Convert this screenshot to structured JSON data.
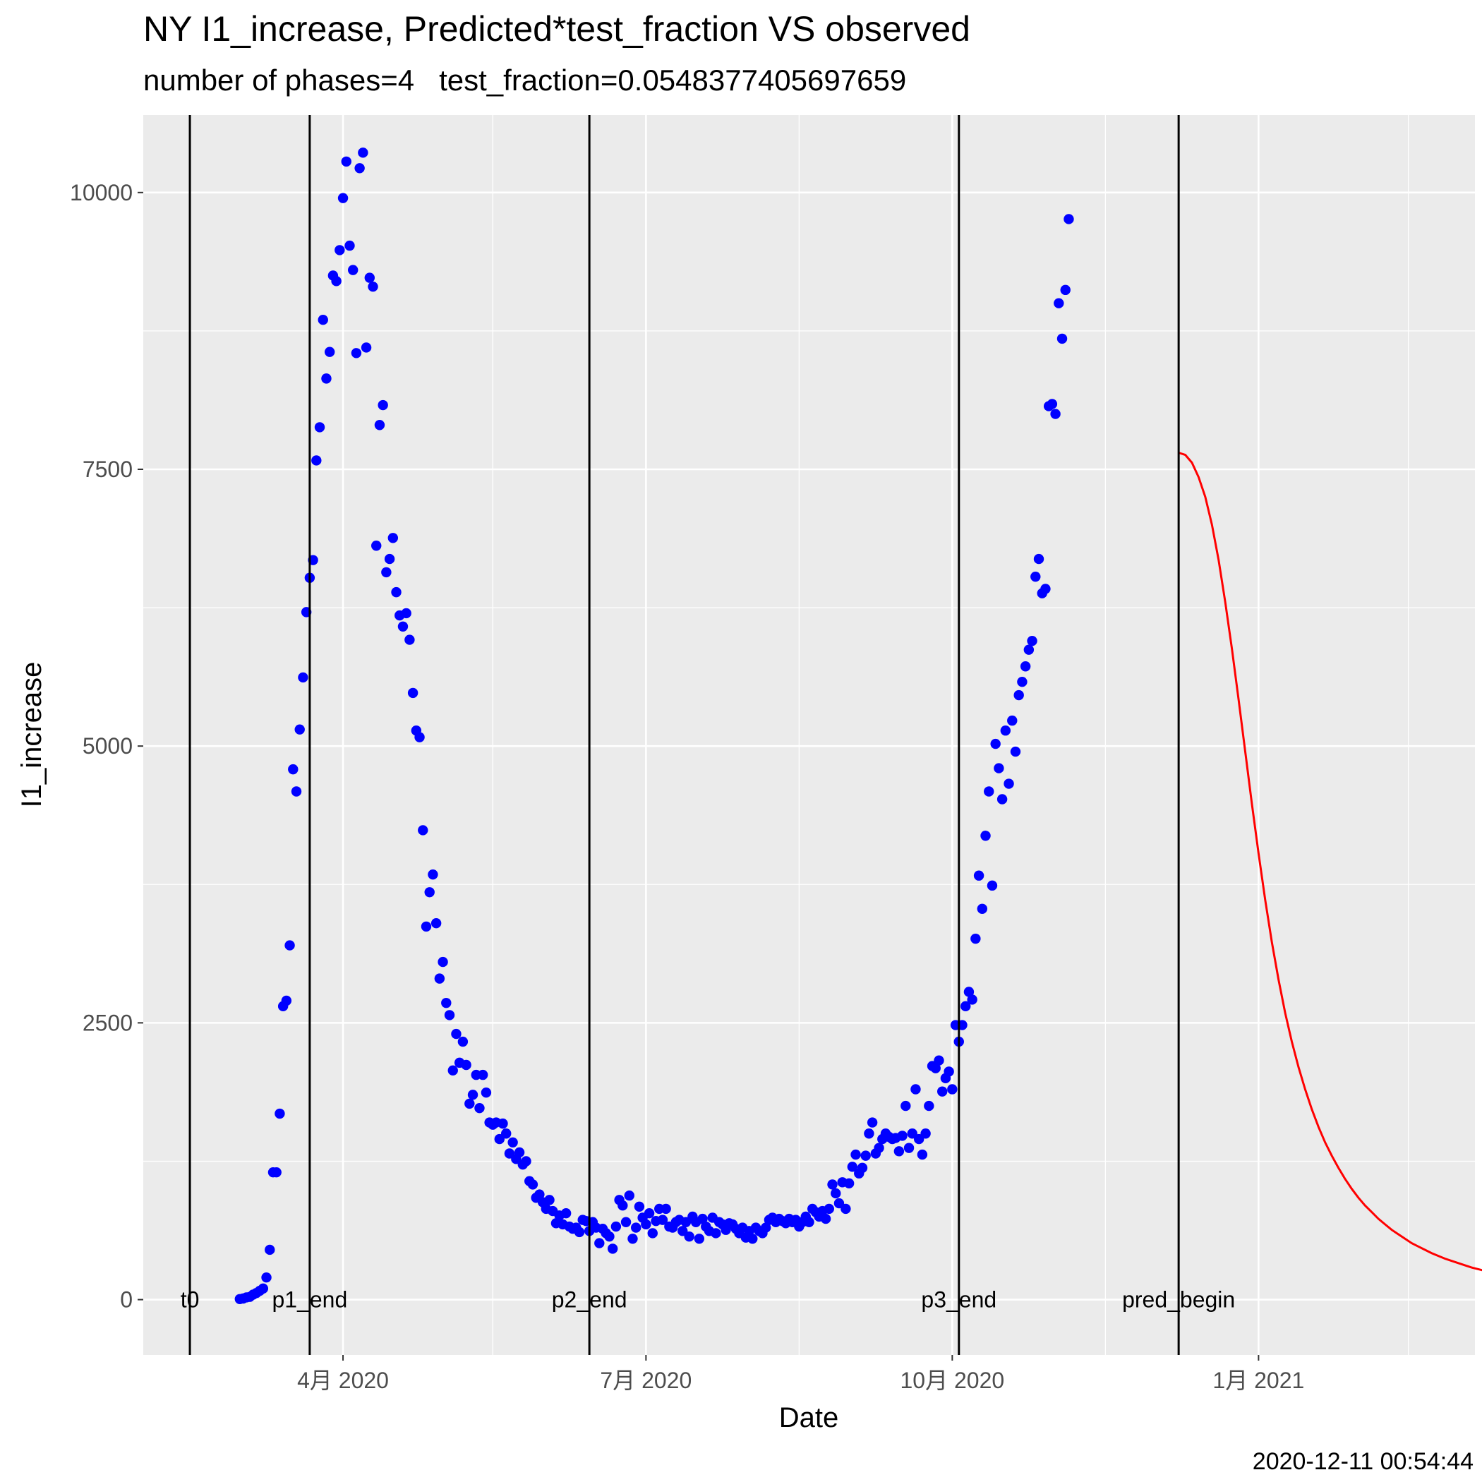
{
  "chart_data": {
    "type": "scatter",
    "title": "NY I1_increase, Predicted*test_fraction VS observed",
    "subtitle": "number of phases=4   test_fraction=0.0548377405697659",
    "caption": "2020-12-11 00:54:44",
    "xlabel": "Date",
    "ylabel": "I1_increase",
    "xlim": [
      "2020-02-01",
      "2021-03-07"
    ],
    "ylim": [
      -500,
      10700
    ],
    "x_ticks": [
      {
        "date": "2020-04-01",
        "label": "4月 2020"
      },
      {
        "date": "2020-07-01",
        "label": "7月 2020"
      },
      {
        "date": "2020-10-01",
        "label": "10月 2020"
      },
      {
        "date": "2021-01-01",
        "label": "1月 2021"
      }
    ],
    "x_minor_ticks": [
      "2020-02-15",
      "2020-05-16",
      "2020-08-16",
      "2020-11-16",
      "2021-02-15"
    ],
    "y_ticks": [
      0,
      2500,
      5000,
      7500,
      10000
    ],
    "y_minor_ticks": [
      1250,
      3750,
      6250,
      8750
    ],
    "grid": true,
    "vlines": [
      {
        "date": "2020-02-15",
        "label": "t0"
      },
      {
        "date": "2020-03-22",
        "label": "p1_end"
      },
      {
        "date": "2020-06-14",
        "label": "p2_end"
      },
      {
        "date": "2020-10-03",
        "label": "p3_end"
      },
      {
        "date": "2020-12-08",
        "label": "pred_begin"
      }
    ],
    "series": [
      {
        "type": "scatter",
        "color": "#0000ff",
        "start_date": "2020-03-01",
        "values": [
          5,
          10,
          20,
          25,
          45,
          60,
          80,
          100,
          200,
          450,
          1150,
          1150,
          1680,
          2650,
          2700,
          3200,
          4790,
          4590,
          5150,
          5620,
          6210,
          6520,
          6680,
          7580,
          7880,
          8850,
          8320,
          8560,
          9250,
          9200,
          9480,
          9950,
          10280,
          9520,
          9300,
          8550,
          10220,
          10360,
          8600,
          9230,
          9150,
          6810,
          7900,
          8080,
          6570,
          6690,
          6880,
          6390,
          6180,
          6080,
          6200,
          5960,
          5480,
          5140,
          5080,
          4240,
          3370,
          3680,
          3840,
          3400,
          2900,
          3050,
          2680,
          2570,
          2070,
          2400,
          2140,
          2330,
          2120,
          1770,
          1850,
          2030,
          1730,
          2030,
          1870,
          1600,
          1580,
          1600,
          1450,
          1590,
          1500,
          1320,
          1420,
          1270,
          1330,
          1220,
          1250,
          1070,
          1040,
          920,
          950,
          880,
          820,
          900,
          800,
          690,
          760,
          680,
          780,
          660,
          640,
          650,
          610,
          720,
          710,
          620,
          700,
          650,
          510,
          640,
          600,
          570,
          460,
          660,
          900,
          850,
          700,
          940,
          550,
          650,
          840,
          740,
          680,
          780,
          600,
          710,
          820,
          720,
          820,
          660,
          650,
          700,
          720,
          620,
          700,
          570,
          750,
          700,
          550,
          730,
          660,
          620,
          740,
          600,
          700,
          680,
          630,
          690,
          680,
          640,
          600,
          650,
          560,
          620,
          550,
          650,
          620,
          600,
          650,
          720,
          740,
          700,
          730,
          710,
          690,
          730,
          700,
          720,
          660,
          700,
          750,
          700,
          820,
          790,
          750,
          800,
          730,
          820,
          1040,
          960,
          870,
          1060,
          820,
          1050,
          1200,
          1310,
          1140,
          1190,
          1300,
          1500,
          1600,
          1320,
          1370,
          1450,
          1500,
          1470,
          1450,
          1460,
          1340,
          1480,
          1750,
          1370,
          1500,
          1900,
          1450,
          1310,
          1500,
          1750,
          2110,
          2090,
          2160,
          1880,
          2000,
          2060,
          1900,
          2480,
          2330,
          2480,
          2650,
          2780,
          2710,
          3260,
          3830,
          3530,
          4190,
          4590,
          3740,
          5020,
          4800,
          4520,
          5140,
          4660,
          5230,
          4950,
          5460,
          5580,
          5720,
          5870,
          5950,
          6530,
          6690,
          6380,
          6420,
          8070,
          8090,
          8000,
          9000,
          8680,
          9120,
          9760
        ]
      },
      {
        "type": "line",
        "color": "#ff0000",
        "start_date": "2020-12-08",
        "values": [
          7650,
          7630,
          7560,
          7430,
          7250,
          7000,
          6680,
          6300,
          5880,
          5420,
          4950,
          4480,
          4030,
          3610,
          3230,
          2890,
          2590,
          2330,
          2100,
          1900,
          1720,
          1560,
          1420,
          1300,
          1190,
          1090,
          1000,
          920,
          850,
          790,
          730,
          680,
          630,
          590,
          550,
          510,
          480,
          450,
          420,
          395,
          370,
          350,
          330,
          310,
          290,
          275,
          260,
          245
        ]
      }
    ]
  }
}
